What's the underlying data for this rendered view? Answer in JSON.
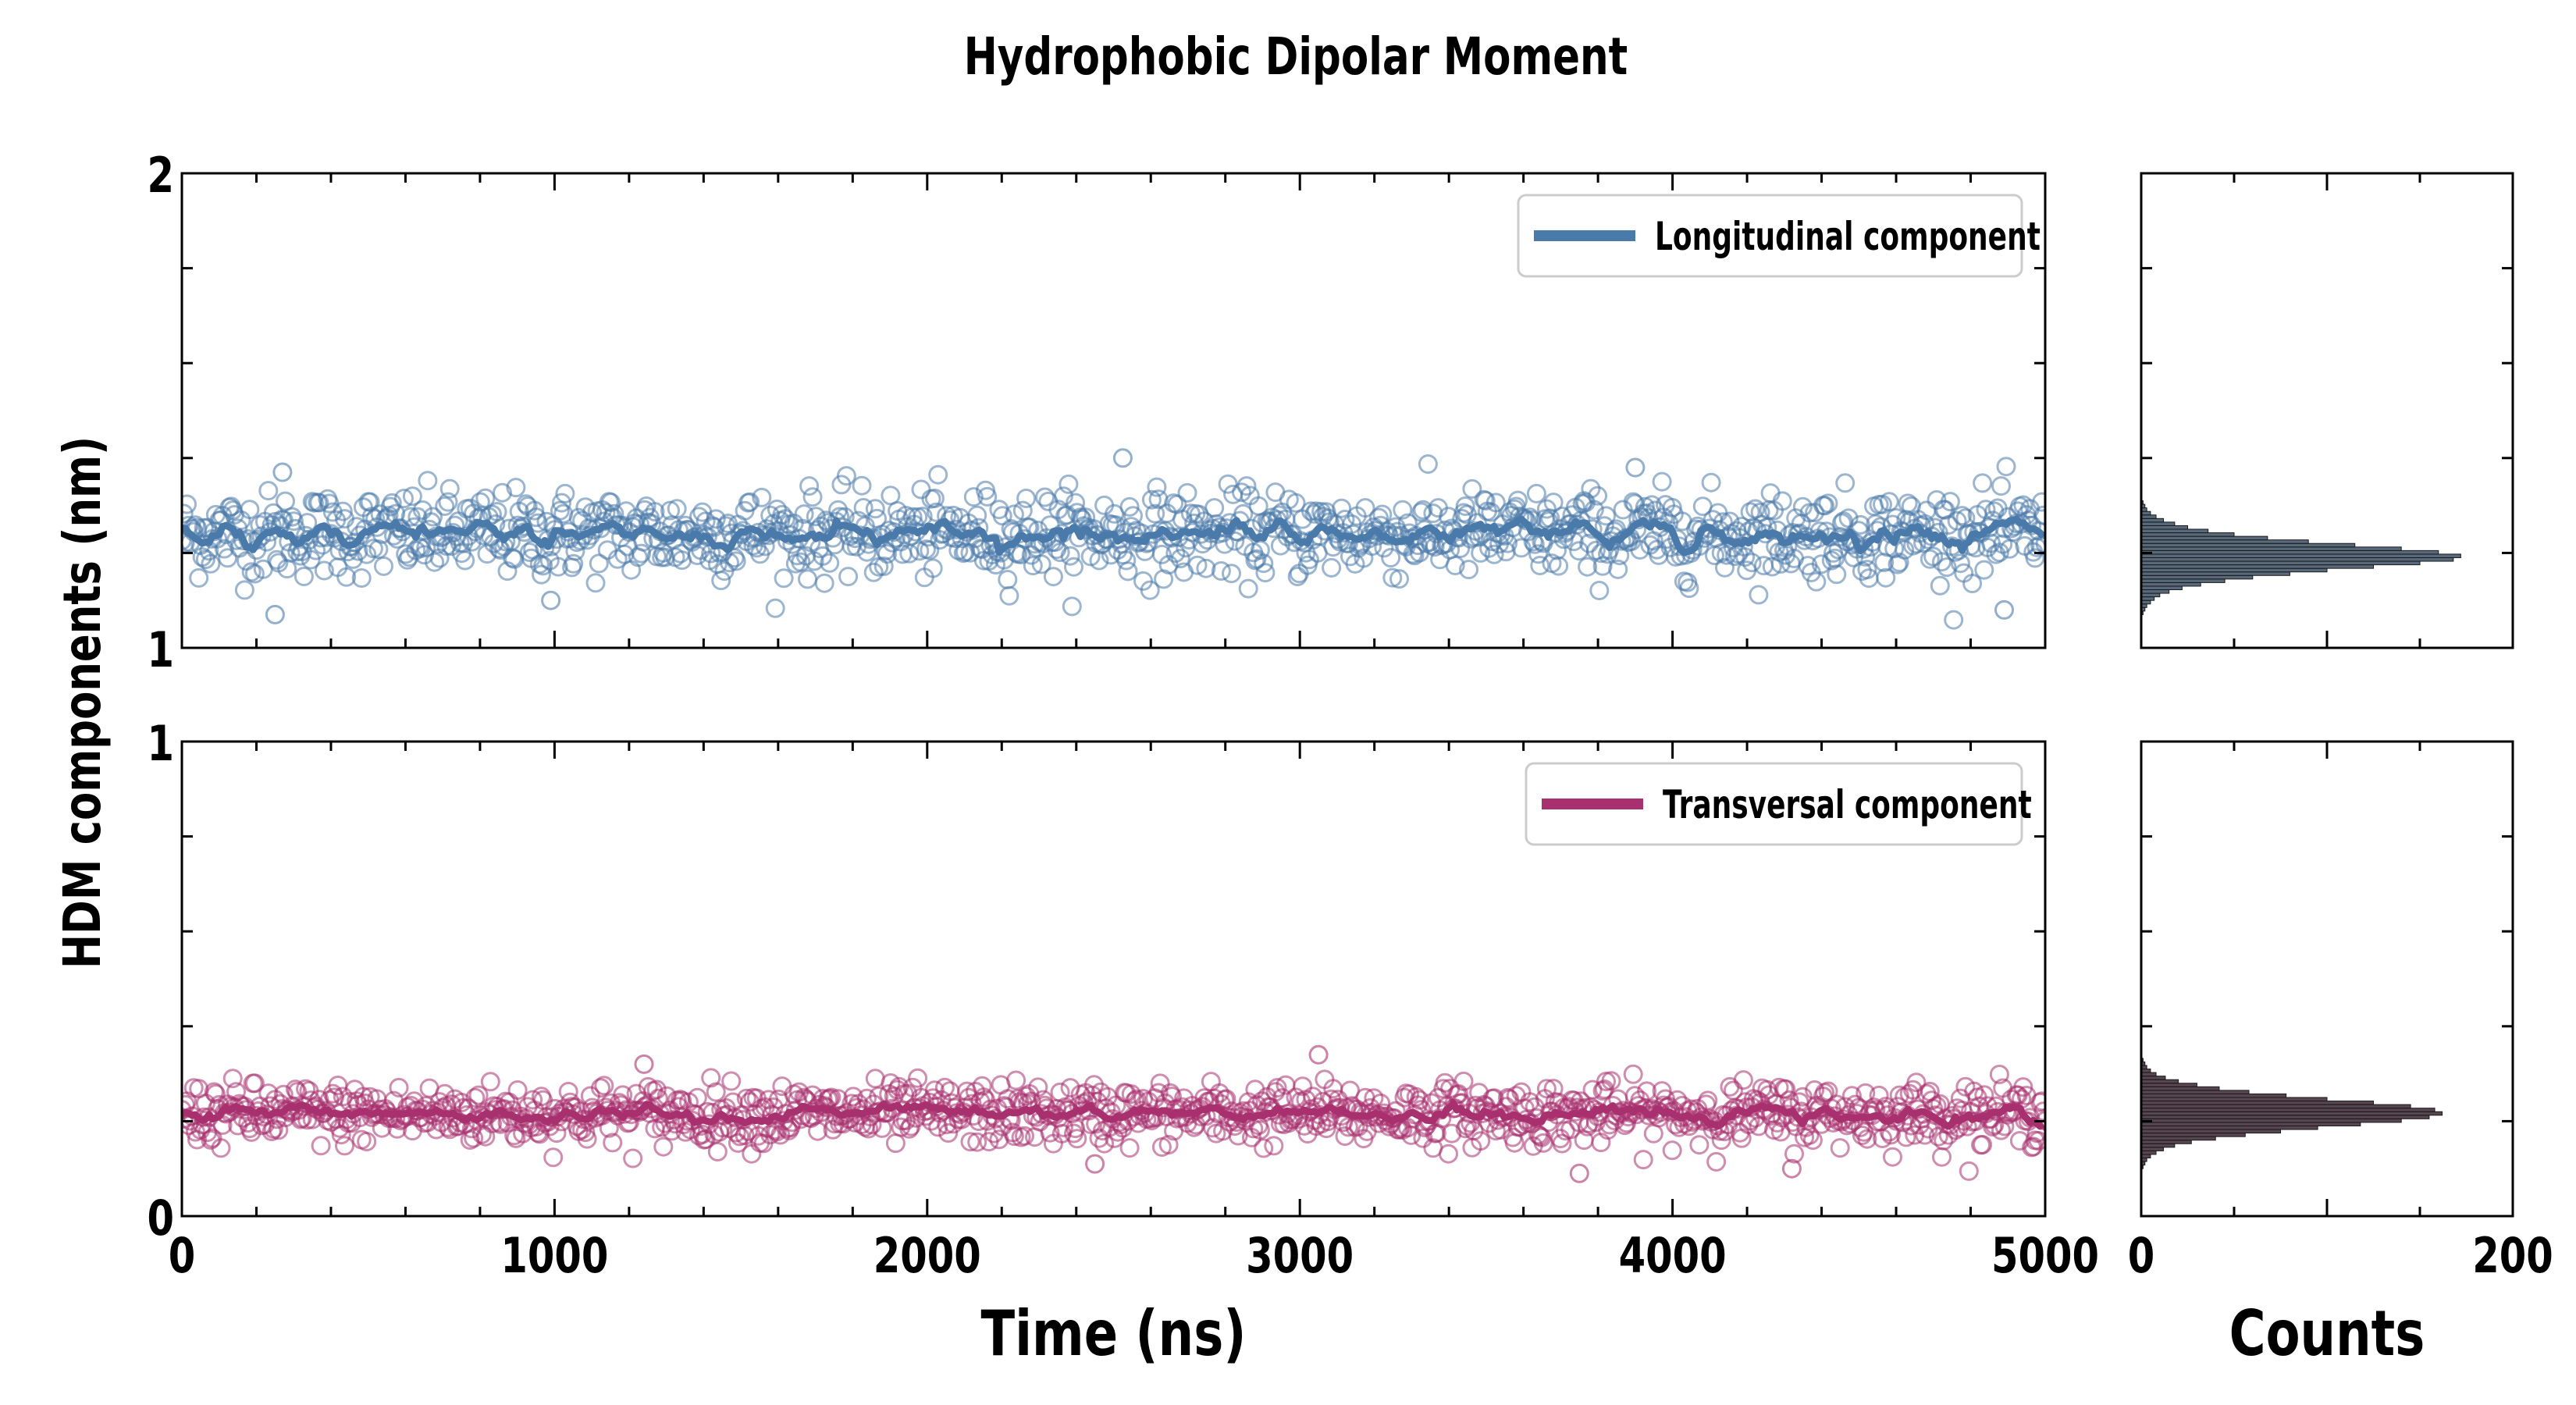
{
  "chart_data": {
    "type": "scatter",
    "title": "Hydrophobic Dipolar Moment",
    "ylabel": "HDM components (nm)",
    "panels": [
      {
        "name": "longitudinal",
        "legend": "Longitudinal component",
        "color": "#4a7aaa",
        "xlim": [
          0,
          5000
        ],
        "ylim": [
          1,
          2
        ],
        "yticklabels": [
          "1",
          "2"
        ],
        "xticklabels": [],
        "series_mean": 1.24,
        "series_spread": 0.045,
        "n_points": 1100,
        "outliers": [
          [
            250,
            1.07
          ],
          [
            990,
            1.1
          ],
          [
            2525,
            1.4
          ],
          [
            3900,
            1.38
          ],
          [
            4890,
            1.08
          ],
          [
            270,
            1.37
          ]
        ],
        "hist": {
          "xlim": [
            0,
            200
          ],
          "bin_start": 1.07,
          "bin_width": 0.0075,
          "counts": [
            1,
            2,
            3,
            5,
            7,
            10,
            15,
            22,
            32,
            45,
            60,
            80,
            100,
            125,
            150,
            168,
            172,
            160,
            140,
            115,
            90,
            68,
            50,
            36,
            25,
            18,
            12,
            8,
            5,
            3,
            2,
            1
          ],
          "bar_color": "#3a4f63"
        }
      },
      {
        "name": "transversal",
        "legend": "Transversal component",
        "color": "#a8306e",
        "xlim": [
          0,
          5000
        ],
        "ylim": [
          0,
          1
        ],
        "yticklabels": [
          "0",
          "1"
        ],
        "xticklabels": [
          "0",
          "1000",
          "2000",
          "3000",
          "4000",
          "5000"
        ],
        "xlabel": "Time (ns)",
        "series_mean": 0.215,
        "series_spread": 0.032,
        "n_points": 1100,
        "outliers": [
          [
            2450,
            0.11
          ],
          [
            3750,
            0.09
          ],
          [
            4320,
            0.1
          ],
          [
            3050,
            0.34
          ],
          [
            1240,
            0.32
          ]
        ],
        "hist": {
          "xlim": [
            0,
            200
          ],
          "bin_start": 0.1,
          "bin_width": 0.0075,
          "xlabel": "Counts",
          "xticklabels": [
            "0",
            "200"
          ],
          "counts": [
            1,
            2,
            3,
            5,
            8,
            12,
            18,
            27,
            40,
            56,
            75,
            95,
            118,
            140,
            155,
            162,
            158,
            145,
            125,
            100,
            78,
            58,
            42,
            30,
            20,
            13,
            8,
            5,
            3,
            2,
            1
          ],
          "bar_color": "#3a2530"
        }
      }
    ]
  }
}
